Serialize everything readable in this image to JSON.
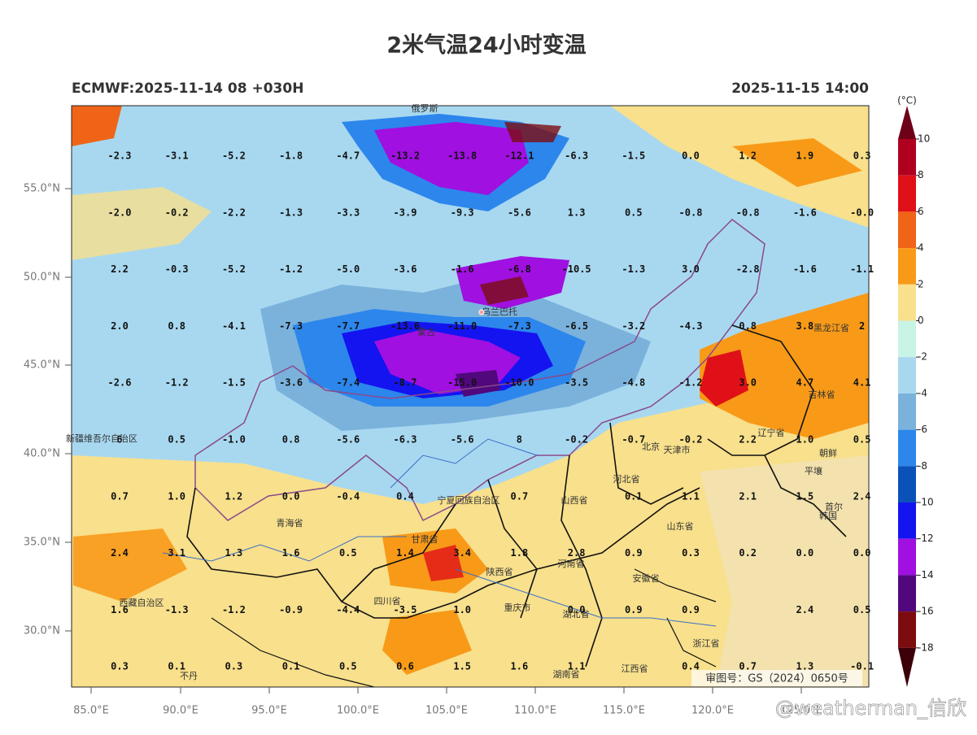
{
  "header": {
    "title": "2米气温24小时变温",
    "left": "ECMWF:2025-11-14 08 +030H",
    "right": "2025-11-15 14:00"
  },
  "map": {
    "lat_labels": [
      "55.0°N",
      "50.0°N",
      "45.0°N",
      "40.0°N",
      "35.0°N",
      "30.0°N"
    ],
    "lon_labels": [
      "85.0°E",
      "90.0°E",
      "95.0°E",
      "100.0°E",
      "105.0°E",
      "110.0°E",
      "115.0°E",
      "120.0°E",
      "125.0°E"
    ],
    "grid": [
      [
        "-2.3",
        "-3.1",
        "-5.2",
        "-1.8",
        "-4.7",
        "-13.2",
        "-13.8",
        "-12.1",
        "-6.3",
        "-1.5",
        "0.0",
        "1.2",
        "1.9",
        "0.3"
      ],
      [
        "-2.0",
        "-0.2",
        "-2.2",
        "-1.3",
        "-3.3",
        "-3.9",
        "-9.3",
        "-5.6",
        "1.3",
        "0.5",
        "-0.8",
        "-0.8",
        "-1.6",
        "-0.0"
      ],
      [
        "2.2",
        "-0.3",
        "-5.2",
        "-1.2",
        "-5.0",
        "-3.6",
        "-1.6",
        "-6.8",
        "-10.5",
        "-1.3",
        "3.0",
        "-2.8",
        "-1.6",
        "-1.1"
      ],
      [
        "2.0",
        "0.8",
        "-4.1",
        "-7.3",
        "-7.7",
        "-13.6",
        "-11.0",
        "-7.3",
        "-6.5",
        "-3.2",
        "-4.3",
        "0.8",
        "3.8",
        "2"
      ],
      [
        "-2.6",
        "-1.2",
        "-1.5",
        "-3.6",
        "-7.4",
        "-8.7",
        "-15.0",
        "-10.0",
        "-3.5",
        "-4.8",
        "-1.2",
        "3.0",
        "4.7",
        "4.1"
      ],
      [
        "6",
        "0.5",
        "-1.0",
        "0.8",
        "-5.6",
        "-6.3",
        "-5.6",
        "8",
        "-0.2",
        "-0.7",
        "-0.2",
        "2.2",
        "1.0",
        "0.5"
      ],
      [
        "0.7",
        "1.0",
        "1.2",
        "0.0",
        "-0.4",
        "0.4",
        null,
        "0.7",
        null,
        "0.1",
        "1.1",
        "2.1",
        "1.5",
        "2.4"
      ],
      [
        "2.4",
        "3.1",
        "1.3",
        "1.6",
        "0.5",
        "1.4",
        "3.4",
        "1.8",
        "2.8",
        "0.9",
        "0.3",
        "0.2",
        "0.0",
        "0.0"
      ],
      [
        "1.6",
        "-1.3",
        "-1.2",
        "-0.9",
        "-4.4",
        "-3.5",
        "1.0",
        null,
        "0.0",
        "0.9",
        "0.9",
        null,
        "2.4",
        "0.5"
      ],
      [
        "0.3",
        "0.1",
        "0.3",
        "0.1",
        "0.5",
        "0.6",
        "1.5",
        "1.6",
        "1.1",
        null,
        "0.4",
        "0.7",
        "1.3",
        "-0.1"
      ]
    ],
    "places": [
      "俄罗斯",
      "蒙古",
      "乌兰巴托",
      "新疆维吾尔自治区",
      "宁夏回族自治区",
      "北京",
      "天津市",
      "河北省",
      "山西省",
      "山东省",
      "青海省",
      "甘肃省",
      "陕西省",
      "河南省",
      "安徽省",
      "四川省",
      "重庆市",
      "湖北省",
      "西藏自治区",
      "湖南省",
      "江西省",
      "浙江省",
      "辽宁省",
      "吉林省",
      "黑龙江省",
      "朝鲜",
      "韩国",
      "首尔",
      "平壤",
      "不丹"
    ],
    "approval": "审图号：GS（2024）0650号"
  },
  "colorbar": {
    "unit": "(°C)",
    "ticks": [
      10,
      8,
      6,
      4,
      2,
      0,
      -2,
      -4,
      -6,
      -8,
      -10,
      -12,
      -14,
      -16,
      -18
    ],
    "colors": [
      "#6e0018",
      "#b00020",
      "#e01018",
      "#f06418",
      "#f89a18",
      "#f8e08c",
      "#c8f4e6",
      "#a8d8f0",
      "#7ab2dc",
      "#2c86ec",
      "#0a52b8",
      "#1414f0",
      "#a010e0",
      "#50087c",
      "#7c0c10",
      "#3c0008"
    ]
  },
  "watermark": "@weatherman_信欣"
}
